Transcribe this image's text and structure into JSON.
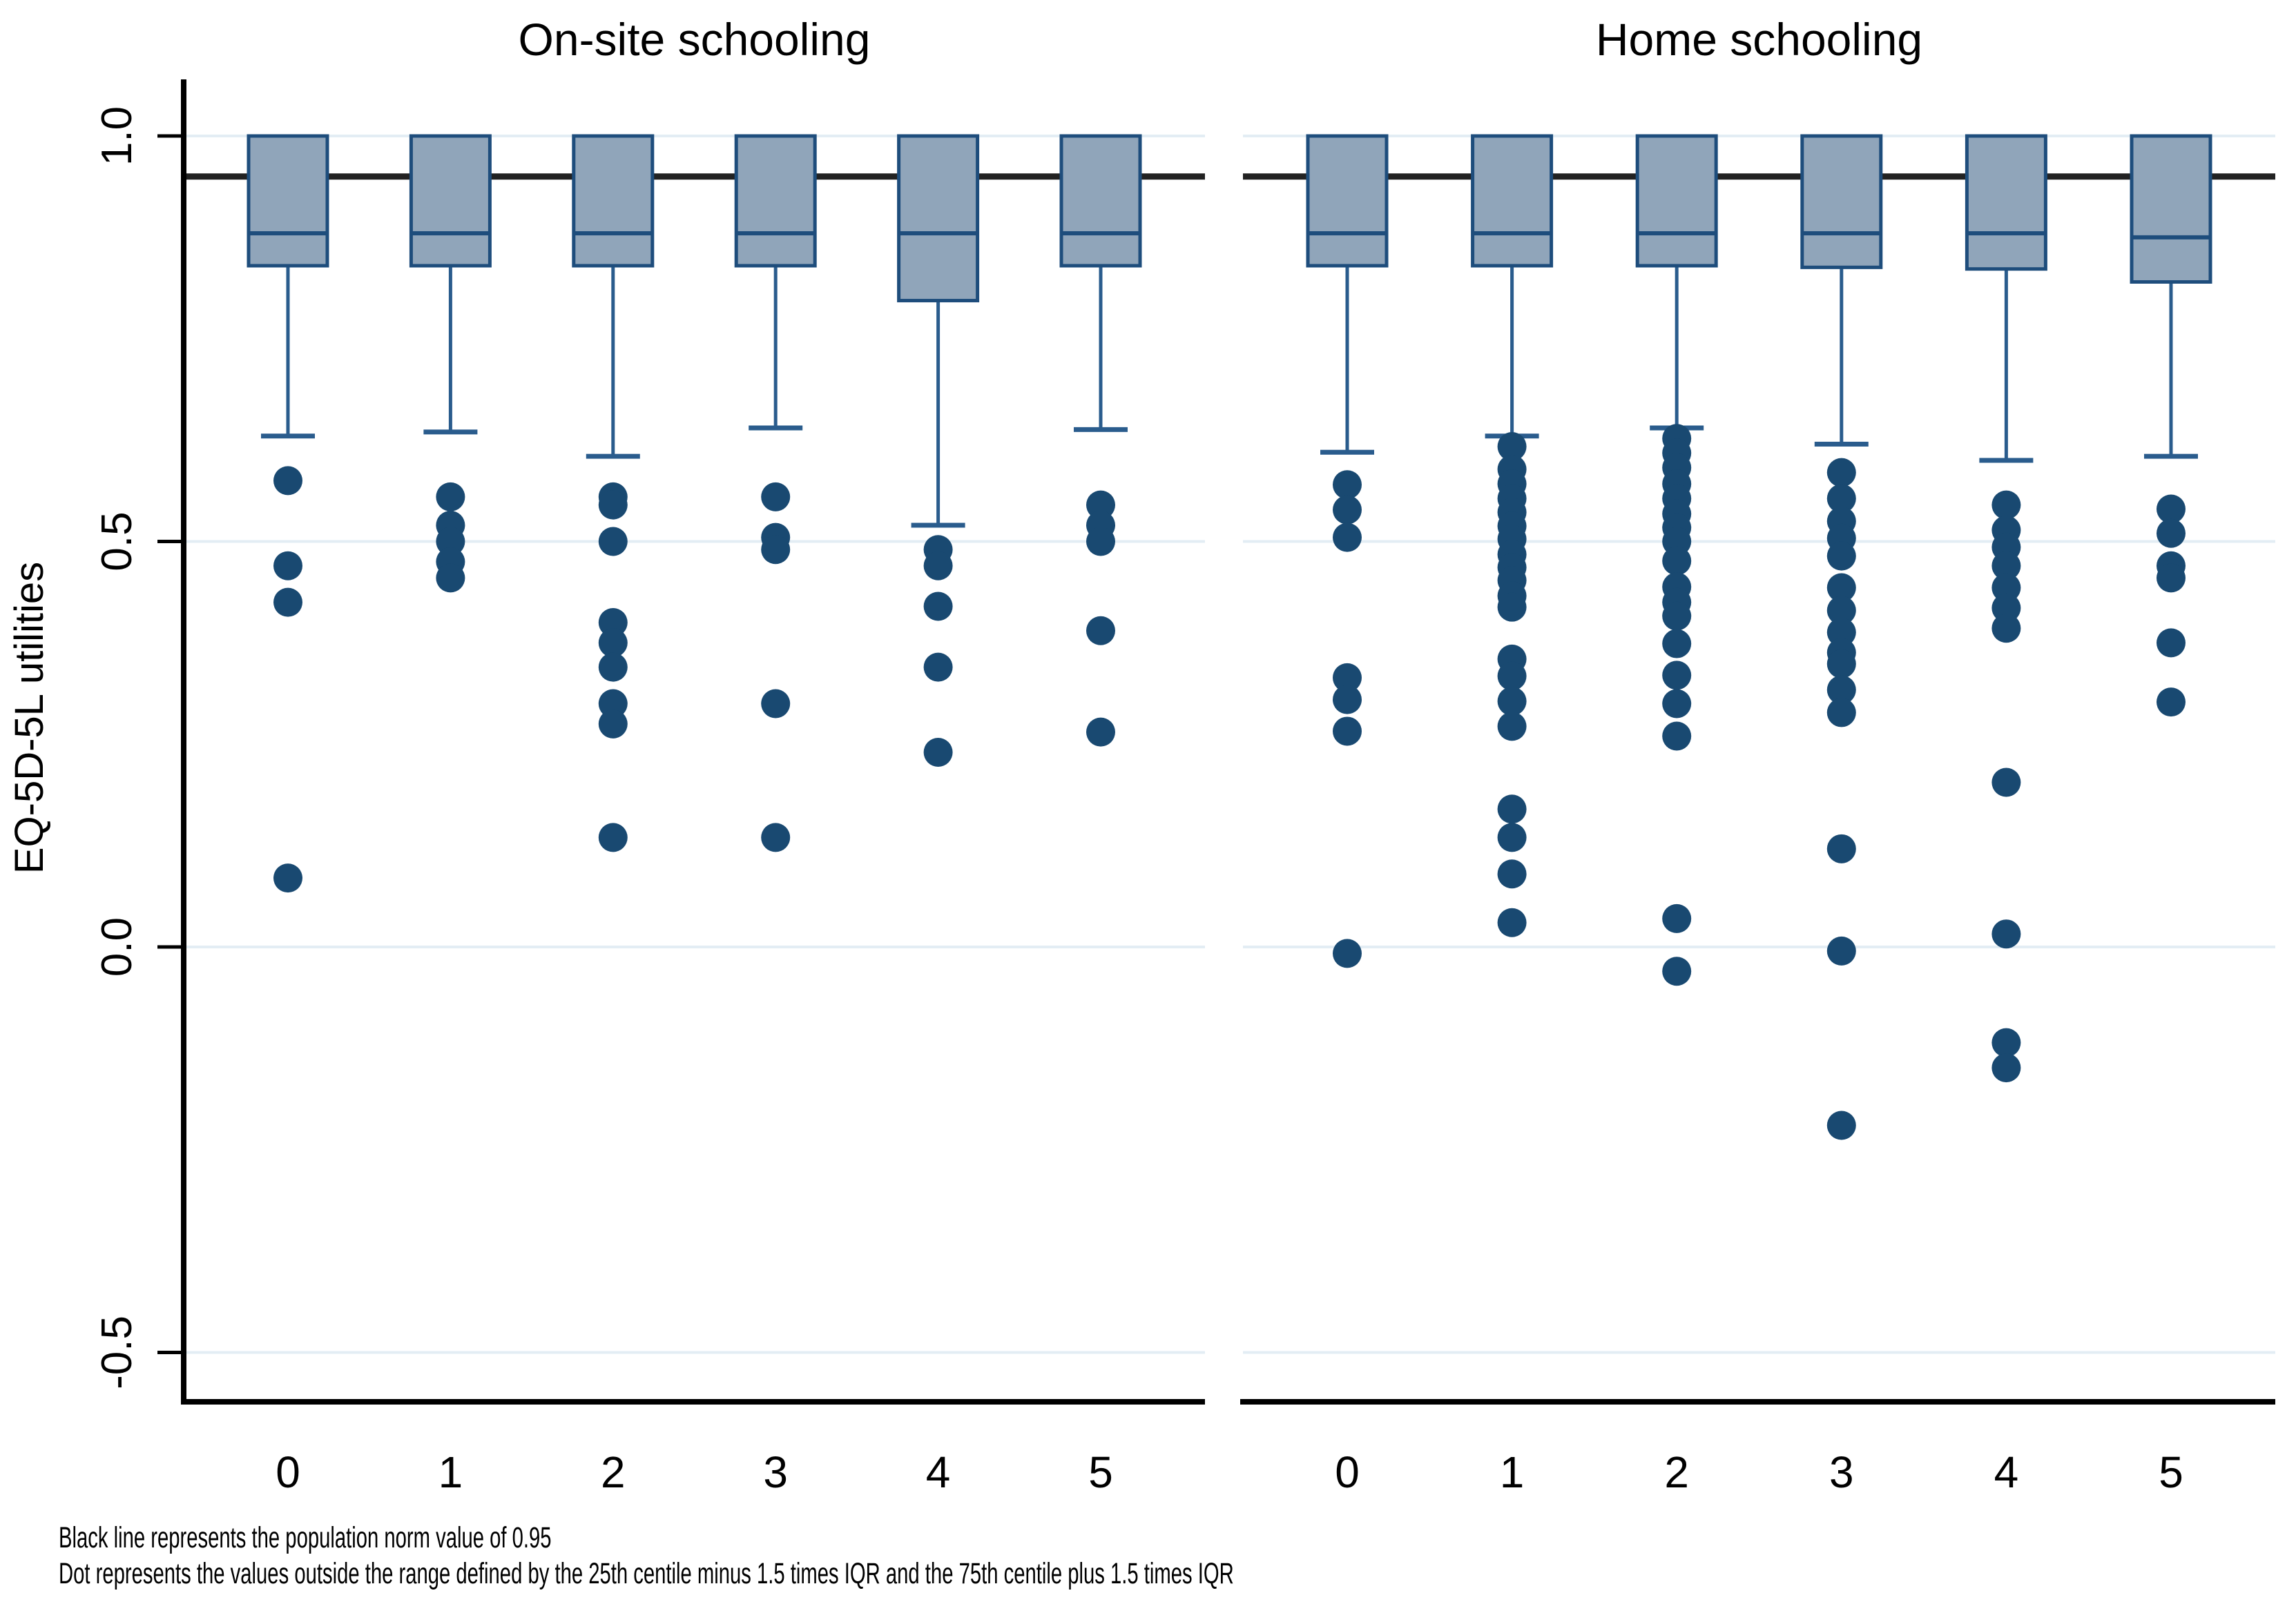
{
  "page": {
    "background": "#ffffff"
  },
  "footnotes": {
    "line1": "Black line represents the population norm value of 0.95",
    "line2": "Dot represents the values outside the range defined by the 25th centile minus 1.5 times IQR and the 75th centile plus 1.5 times IQR"
  },
  "chart_data": {
    "type": "boxplot",
    "ylabel": "EQ-5D-5L utilities",
    "yticks": [
      {
        "label": "1.0",
        "value": 1.0
      },
      {
        "label": "0.5",
        "value": 0.5
      },
      {
        "label": "0.0",
        "value": 0.0
      },
      {
        "label": "-0.5",
        "value": -0.5
      }
    ],
    "ylim": [
      -0.561,
      1.07
    ],
    "grid": true,
    "legend_position": "none",
    "norm_line_value": 0.95,
    "colors": {
      "box_fill": "#90a5ba",
      "box_stroke": "#1e4d7c",
      "whisker": "#2a5c8d",
      "outlier_dot": "#194971",
      "norm_line": "#222222",
      "gridline": "#e3edf4",
      "axis": "#000000",
      "text": "#000000"
    },
    "panels": [
      {
        "title": "On-site schooling",
        "categories": [
          "0",
          "1",
          "2",
          "3",
          "4",
          "5"
        ],
        "boxes": [
          {
            "category": "0",
            "q1": 0.84,
            "median": 0.88,
            "q3": 1.0,
            "whisker_low": 0.63,
            "whisker_high": 1.0,
            "outliers": [
              0.575,
              0.47,
              0.425,
              0.085
            ]
          },
          {
            "category": "1",
            "q1": 0.84,
            "median": 0.88,
            "q3": 1.0,
            "whisker_low": 0.635,
            "whisker_high": 1.0,
            "outliers": [
              0.555,
              0.52,
              0.5,
              0.475,
              0.455
            ]
          },
          {
            "category": "2",
            "q1": 0.84,
            "median": 0.88,
            "q3": 1.0,
            "whisker_low": 0.605,
            "whisker_high": 1.0,
            "outliers": [
              0.555,
              0.545,
              0.5,
              0.4,
              0.375,
              0.345,
              0.3,
              0.275,
              0.135
            ]
          },
          {
            "category": "3",
            "q1": 0.84,
            "median": 0.88,
            "q3": 1.0,
            "whisker_low": 0.64,
            "whisker_high": 1.0,
            "outliers": [
              0.555,
              0.505,
              0.49,
              0.3,
              0.135
            ]
          },
          {
            "category": "4",
            "q1": 0.797,
            "median": 0.88,
            "q3": 1.0,
            "whisker_low": 0.52,
            "whisker_high": 1.0,
            "outliers": [
              0.49,
              0.47,
              0.42,
              0.345,
              0.24
            ]
          },
          {
            "category": "5",
            "q1": 0.84,
            "median": 0.88,
            "q3": 1.0,
            "whisker_low": 0.638,
            "whisker_high": 1.0,
            "outliers": [
              0.545,
              0.52,
              0.5,
              0.39,
              0.265
            ]
          }
        ]
      },
      {
        "title": "Home schooling",
        "categories": [
          "0",
          "1",
          "2",
          "3",
          "4",
          "5"
        ],
        "boxes": [
          {
            "category": "0",
            "q1": 0.84,
            "median": 0.88,
            "q3": 1.0,
            "whisker_low": 0.61,
            "whisker_high": 1.0,
            "outliers": [
              0.57,
              0.539,
              0.505,
              0.332,
              0.305,
              0.266,
              -0.008
            ]
          },
          {
            "category": "1",
            "q1": 0.84,
            "median": 0.88,
            "q3": 1.0,
            "whisker_low": 0.63,
            "whisker_high": 1.0,
            "outliers": [
              0.617,
              0.589,
              0.571,
              0.553,
              0.536,
              0.519,
              0.503,
              0.484,
              0.468,
              0.452,
              0.433,
              0.419,
              0.355,
              0.334,
              0.303,
              0.272,
              0.17,
              0.135,
              0.09,
              0.03
            ]
          },
          {
            "category": "2",
            "q1": 0.84,
            "median": 0.88,
            "q3": 1.0,
            "whisker_low": 0.64,
            "whisker_high": 1.0,
            "outliers": [
              0.627,
              0.609,
              0.591,
              0.571,
              0.553,
              0.534,
              0.517,
              0.5,
              0.476,
              0.444,
              0.425,
              0.408,
              0.374,
              0.335,
              0.3,
              0.26,
              0.035,
              -0.03
            ]
          },
          {
            "category": "3",
            "q1": 0.838,
            "median": 0.88,
            "q3": 1.0,
            "whisker_low": 0.62,
            "whisker_high": 1.0,
            "outliers": [
              0.585,
              0.553,
              0.525,
              0.504,
              0.482,
              0.443,
              0.415,
              0.388,
              0.363,
              0.349,
              0.317,
              0.289,
              0.121,
              -0.005,
              -0.22
            ]
          },
          {
            "category": "4",
            "q1": 0.836,
            "median": 0.88,
            "q3": 1.0,
            "whisker_low": 0.6,
            "whisker_high": 1.0,
            "outliers": [
              0.545,
              0.514,
              0.493,
              0.47,
              0.443,
              0.418,
              0.393,
              0.203,
              0.016,
              -0.118,
              -0.149
            ]
          },
          {
            "category": "5",
            "q1": 0.82,
            "median": 0.875,
            "q3": 1.0,
            "whisker_low": 0.605,
            "whisker_high": 1.0,
            "outliers": [
              0.54,
              0.51,
              0.47,
              0.455,
              0.375,
              0.302
            ]
          }
        ]
      }
    ]
  }
}
